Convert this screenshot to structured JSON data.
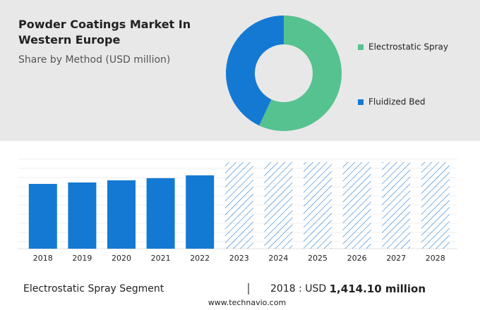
{
  "title": "Powder Coatings Market In Western Europe",
  "subtitle": "Share by Method (USD million)",
  "chart_data": [
    {
      "type": "pie",
      "categories": [
        "Electrostatic Spray",
        "Fluidized Bed"
      ],
      "values": [
        57,
        43
      ],
      "colors": [
        "#56c28f",
        "#1479d3"
      ]
    },
    {
      "type": "bar",
      "categories": [
        "2018",
        "2019",
        "2020",
        "2021",
        "2022",
        "2023",
        "2024",
        "2025",
        "2026",
        "2027",
        "2028"
      ],
      "values": [
        1414.1,
        1445,
        1492,
        1539,
        1601,
        null,
        null,
        null,
        null,
        null,
        null
      ],
      "color": "#1479d3"
    }
  ],
  "highlight": {
    "segment": "Electrostatic Spray Segment",
    "period": "2018 :",
    "currency": "USD",
    "amount": "1,414.10 million"
  },
  "footer": "www.technavio.com"
}
